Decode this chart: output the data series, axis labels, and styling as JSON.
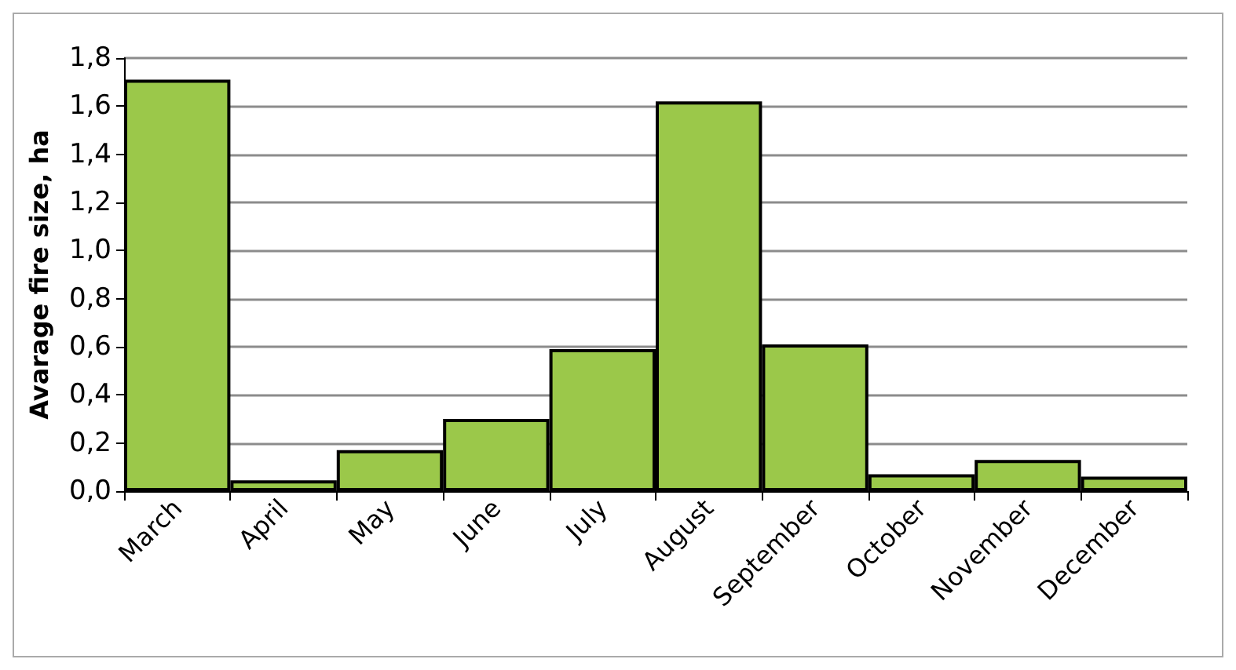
{
  "chart_data": {
    "type": "bar",
    "ylabel": "Avarage fire size, ha",
    "categories": [
      "March",
      "April",
      "May",
      "June",
      "July",
      "August",
      "September",
      "October",
      "November",
      "December"
    ],
    "values": [
      1.71,
      0.045,
      0.17,
      0.3,
      0.59,
      1.62,
      0.61,
      0.07,
      0.13,
      0.06
    ],
    "color": "#9bc84a",
    "ylim": [
      0,
      1.8
    ],
    "yticks": [
      {
        "value": 0,
        "label": "0,0"
      },
      {
        "value": 0.2,
        "label": "0,2"
      },
      {
        "value": 0.4,
        "label": "0,4"
      },
      {
        "value": 0.6,
        "label": "0,6"
      },
      {
        "value": 0.8,
        "label": "0,8"
      },
      {
        "value": 1,
        "label": "1,0"
      },
      {
        "value": 1.2,
        "label": "1,2"
      },
      {
        "value": 1.4,
        "label": "1,4"
      },
      {
        "value": 1.6,
        "label": "1,6"
      },
      {
        "value": 1.8,
        "label": "1,8"
      }
    ],
    "grid": "y"
  }
}
